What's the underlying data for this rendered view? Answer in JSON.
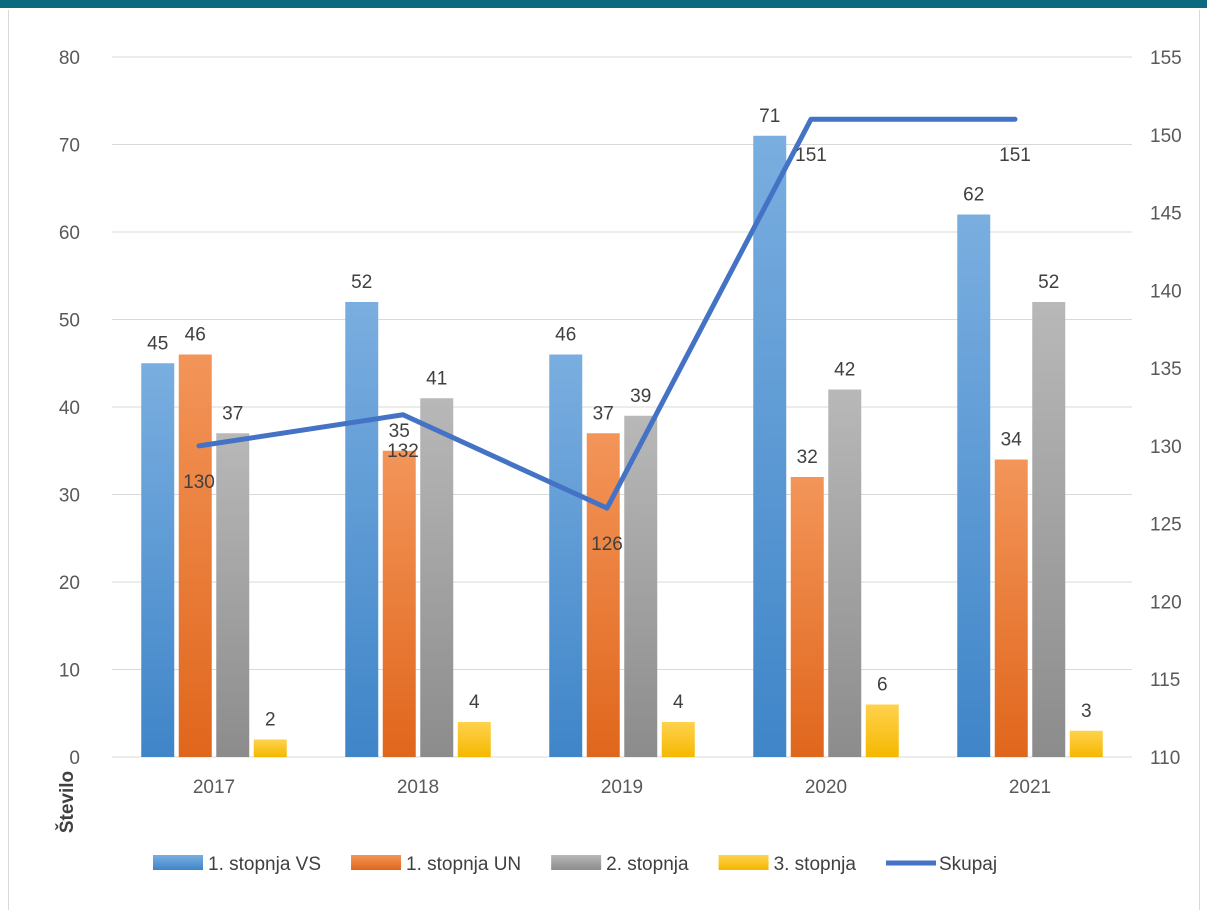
{
  "chart_data": {
    "type": "bar",
    "categories": [
      "2017",
      "2018",
      "2019",
      "2020",
      "2021"
    ],
    "series": [
      {
        "name": "1. stopnja VS",
        "values": [
          45,
          52,
          46,
          71,
          62
        ],
        "color": "#5b9bd5",
        "axis": "left"
      },
      {
        "name": "1. stopnja UN",
        "values": [
          46,
          35,
          37,
          32,
          34
        ],
        "color": "#ed7d31",
        "axis": "left"
      },
      {
        "name": "2. stopnja",
        "values": [
          37,
          41,
          39,
          42,
          52
        ],
        "color": "#a5a5a5",
        "axis": "left"
      },
      {
        "name": "3. stopnja",
        "values": [
          2,
          4,
          4,
          6,
          3
        ],
        "color": "#ffc000",
        "axis": "left"
      }
    ],
    "line_series": {
      "name": "Skupaj",
      "values": [
        130,
        132,
        126,
        151,
        151
      ],
      "color": "#4472c4",
      "axis": "right"
    },
    "ylabel": "Število",
    "ylim": [
      0,
      80
    ],
    "yticks": [
      0,
      10,
      20,
      30,
      40,
      50,
      60,
      70,
      80
    ],
    "y2lim": [
      110,
      155
    ],
    "y2ticks": [
      110,
      115,
      120,
      125,
      130,
      135,
      140,
      145,
      150,
      155
    ],
    "grid": true,
    "legend_position": "bottom"
  }
}
